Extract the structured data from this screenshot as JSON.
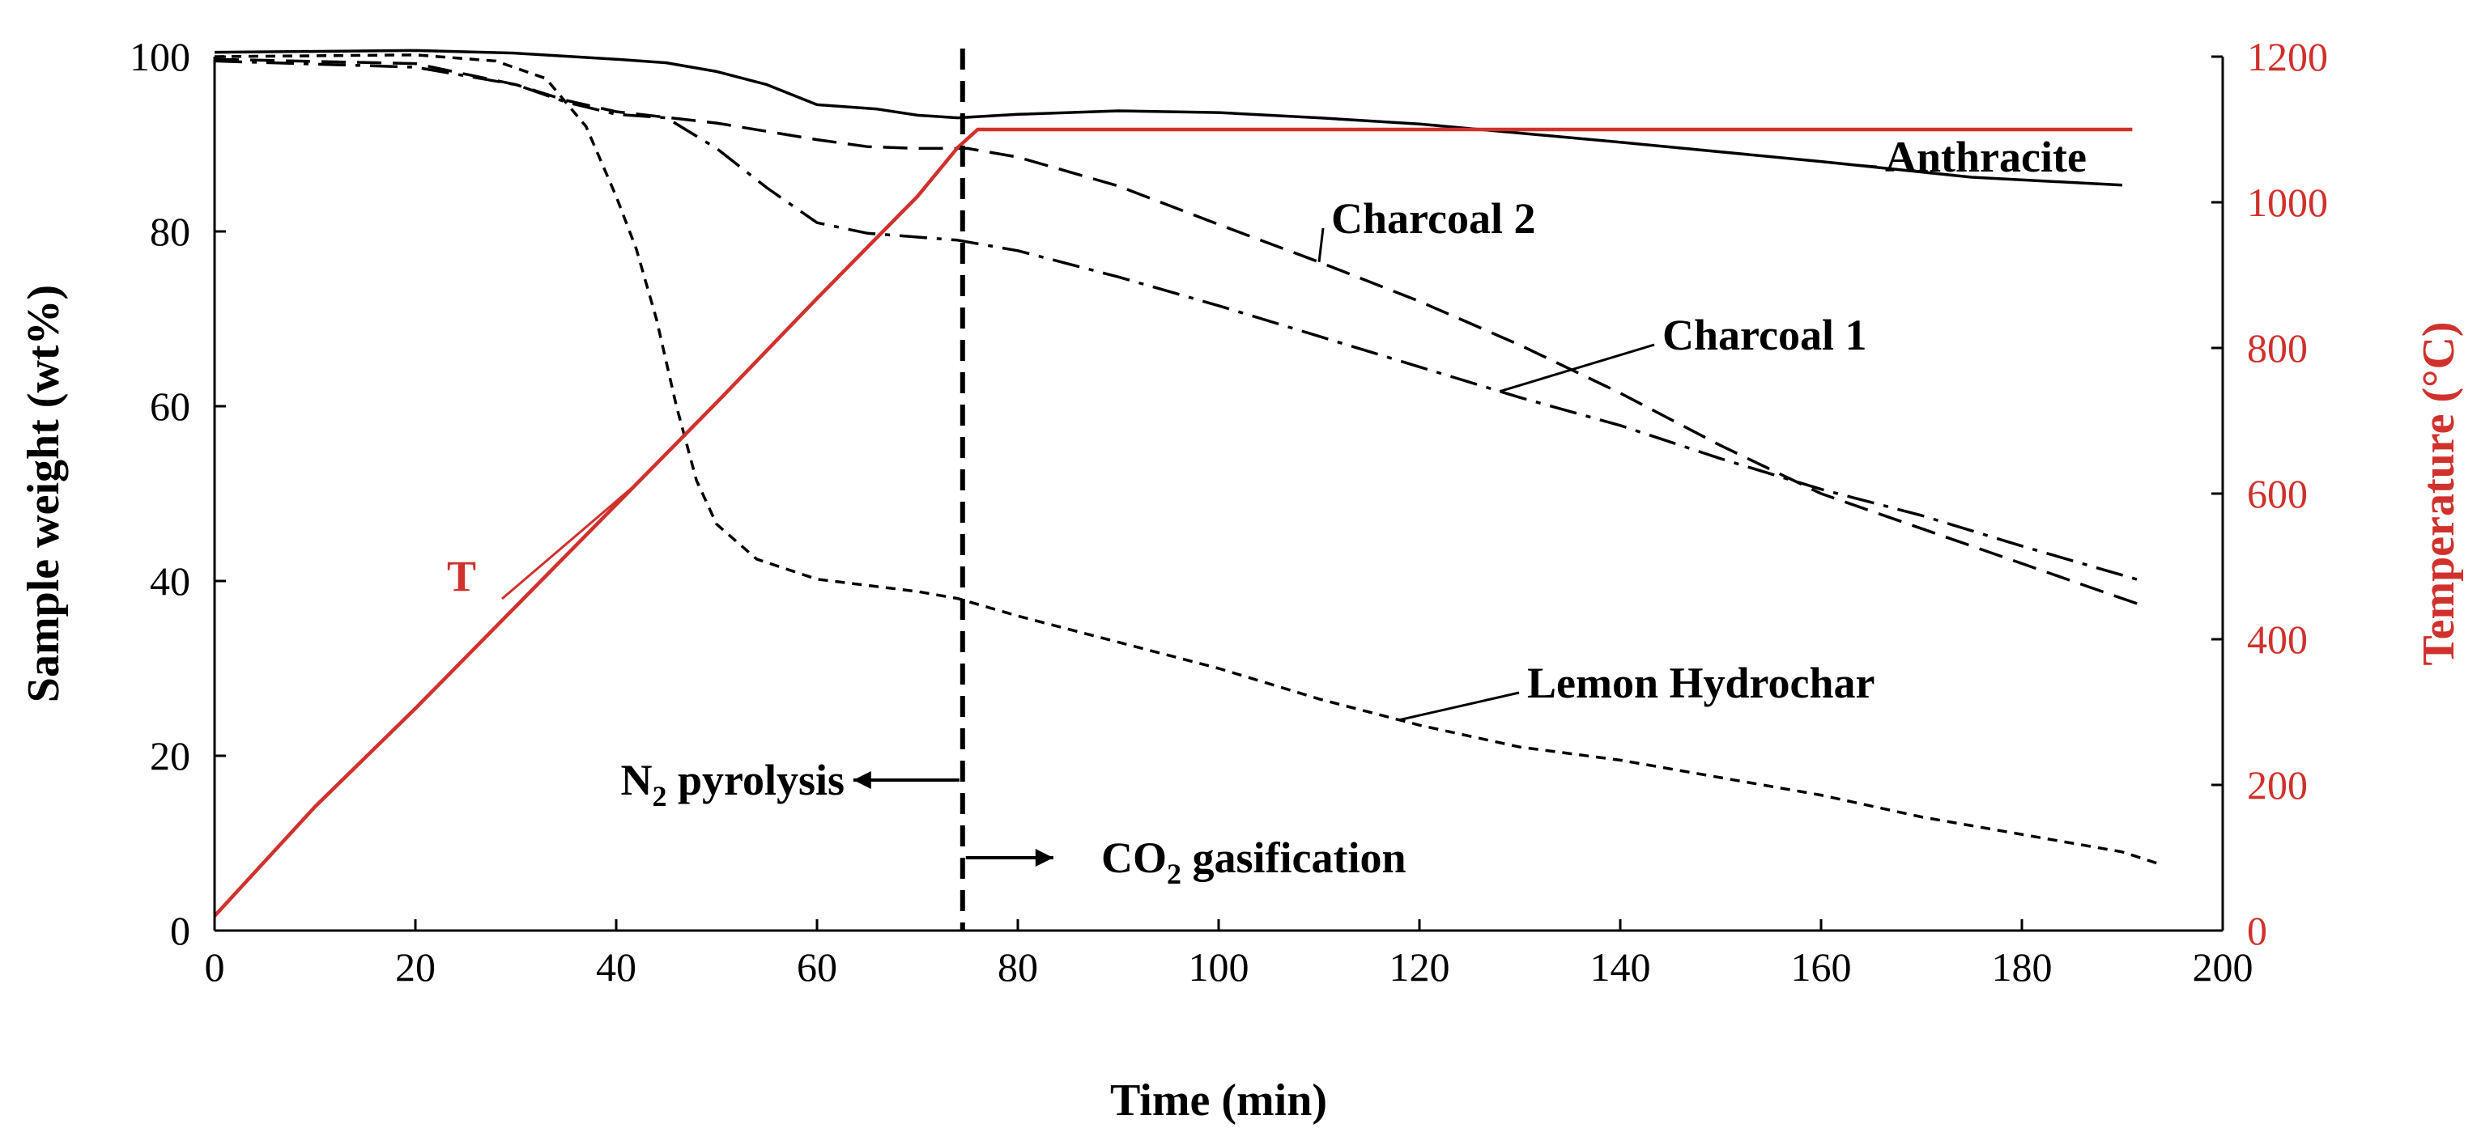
{
  "chart_data": {
    "type": "line",
    "title": "",
    "xlabel": "Time (min)",
    "ylabel": "Sample weight (wt%)",
    "y2label": "Temperature (°C)",
    "xlim": [
      0,
      200
    ],
    "ylim": [
      0,
      100
    ],
    "y2lim": [
      0,
      1200
    ],
    "xticks": [
      0,
      20,
      40,
      60,
      80,
      100,
      120,
      140,
      160,
      180,
      200
    ],
    "yticks": [
      0,
      20,
      40,
      60,
      80,
      100
    ],
    "y2ticks": [
      0,
      200,
      400,
      600,
      800,
      1000,
      1200
    ],
    "grid": false,
    "colors": {
      "axis": "#000000",
      "temperature": "#d0312d",
      "series": "#000000"
    },
    "series": [
      {
        "name": "Anthracite",
        "axis": "left",
        "style": "solid",
        "points": [
          [
            0,
            100.5
          ],
          [
            20,
            100.7
          ],
          [
            30,
            100.4
          ],
          [
            40,
            99.7
          ],
          [
            45,
            99.3
          ],
          [
            50,
            98.3
          ],
          [
            55,
            96.8
          ],
          [
            60,
            94.5
          ],
          [
            66,
            94.0
          ],
          [
            70,
            93.3
          ],
          [
            74,
            93.0
          ],
          [
            80,
            93.4
          ],
          [
            90,
            93.8
          ],
          [
            100,
            93.6
          ],
          [
            110,
            93.0
          ],
          [
            120,
            92.3
          ],
          [
            140,
            90.2
          ],
          [
            160,
            88.0
          ],
          [
            175,
            86.2
          ],
          [
            190,
            85.3
          ]
        ]
      },
      {
        "name": "Charcoal 2",
        "axis": "left",
        "style": "dashed",
        "points": [
          [
            0,
            99.7
          ],
          [
            20,
            99.2
          ],
          [
            30,
            96.8
          ],
          [
            35,
            95.0
          ],
          [
            40,
            93.7
          ],
          [
            50,
            92.4
          ],
          [
            60,
            90.5
          ],
          [
            65,
            89.7
          ],
          [
            70,
            89.5
          ],
          [
            75,
            89.5
          ],
          [
            80,
            88.5
          ],
          [
            90,
            85.2
          ],
          [
            100,
            80.8
          ],
          [
            110,
            76.5
          ],
          [
            120,
            72.0
          ],
          [
            130,
            67.0
          ],
          [
            140,
            61.5
          ],
          [
            150,
            55.5
          ],
          [
            160,
            50.0
          ],
          [
            170,
            46.0
          ],
          [
            180,
            42.0
          ],
          [
            188,
            38.8
          ],
          [
            192,
            37.2
          ]
        ]
      },
      {
        "name": "Charcoal 1",
        "axis": "left",
        "style": "dashdot",
        "points": [
          [
            0,
            99.5
          ],
          [
            20,
            98.8
          ],
          [
            30,
            96.8
          ],
          [
            35,
            94.8
          ],
          [
            40,
            93.4
          ],
          [
            45,
            93.0
          ],
          [
            50,
            89.5
          ],
          [
            55,
            85.0
          ],
          [
            60,
            81.0
          ],
          [
            65,
            79.8
          ],
          [
            74,
            79.0
          ],
          [
            80,
            77.8
          ],
          [
            90,
            74.8
          ],
          [
            100,
            71.5
          ],
          [
            110,
            68.0
          ],
          [
            120,
            64.5
          ],
          [
            130,
            61.0
          ],
          [
            140,
            57.8
          ],
          [
            150,
            54.0
          ],
          [
            160,
            50.5
          ],
          [
            170,
            47.5
          ],
          [
            180,
            44.0
          ],
          [
            192,
            40.0
          ]
        ]
      },
      {
        "name": "Lemon Hydrochar",
        "axis": "left",
        "style": "dotted",
        "points": [
          [
            0,
            100.0
          ],
          [
            20,
            100.2
          ],
          [
            28,
            99.5
          ],
          [
            33,
            97.5
          ],
          [
            37,
            92.0
          ],
          [
            40,
            84.0
          ],
          [
            42,
            78.0
          ],
          [
            44,
            70.0
          ],
          [
            46,
            60.0
          ],
          [
            48,
            51.5
          ],
          [
            50,
            46.5
          ],
          [
            54,
            42.5
          ],
          [
            60,
            40.2
          ],
          [
            70,
            38.8
          ],
          [
            74,
            38.0
          ],
          [
            80,
            36.0
          ],
          [
            90,
            33.0
          ],
          [
            100,
            30.0
          ],
          [
            110,
            26.5
          ],
          [
            120,
            23.5
          ],
          [
            130,
            21.0
          ],
          [
            140,
            19.5
          ],
          [
            150,
            17.5
          ],
          [
            160,
            15.5
          ],
          [
            170,
            13.0
          ],
          [
            180,
            11.0
          ],
          [
            190,
            9.0
          ],
          [
            194,
            7.5
          ]
        ]
      },
      {
        "name": "T",
        "axis": "right",
        "style": "solid",
        "color": "#d0312d",
        "points": [
          [
            0,
            20
          ],
          [
            10,
            170
          ],
          [
            20,
            305
          ],
          [
            30,
            445
          ],
          [
            40,
            585
          ],
          [
            50,
            725
          ],
          [
            60,
            868
          ],
          [
            70,
            1008
          ],
          [
            74,
            1075
          ],
          [
            76,
            1100
          ],
          [
            191,
            1100
          ]
        ]
      }
    ],
    "annotations": [
      {
        "text": "Anthracite",
        "series": "Anthracite"
      },
      {
        "text": "Charcoal 2",
        "series": "Charcoal 2"
      },
      {
        "text": "Charcoal 1",
        "series": "Charcoal 1"
      },
      {
        "text": "Lemon Hydrochar",
        "series": "Lemon Hydrochar"
      },
      {
        "text": "T",
        "series": "T"
      },
      {
        "text": "N2 pyrolysis",
        "main": "N",
        "sub": "2",
        "rest": " pyrolysis",
        "arrow": "left"
      },
      {
        "text": "CO2 gasification",
        "main": "CO",
        "sub": "2",
        "rest": " gasification",
        "arrow": "right"
      }
    ],
    "phase_boundary_x": 74.5
  }
}
